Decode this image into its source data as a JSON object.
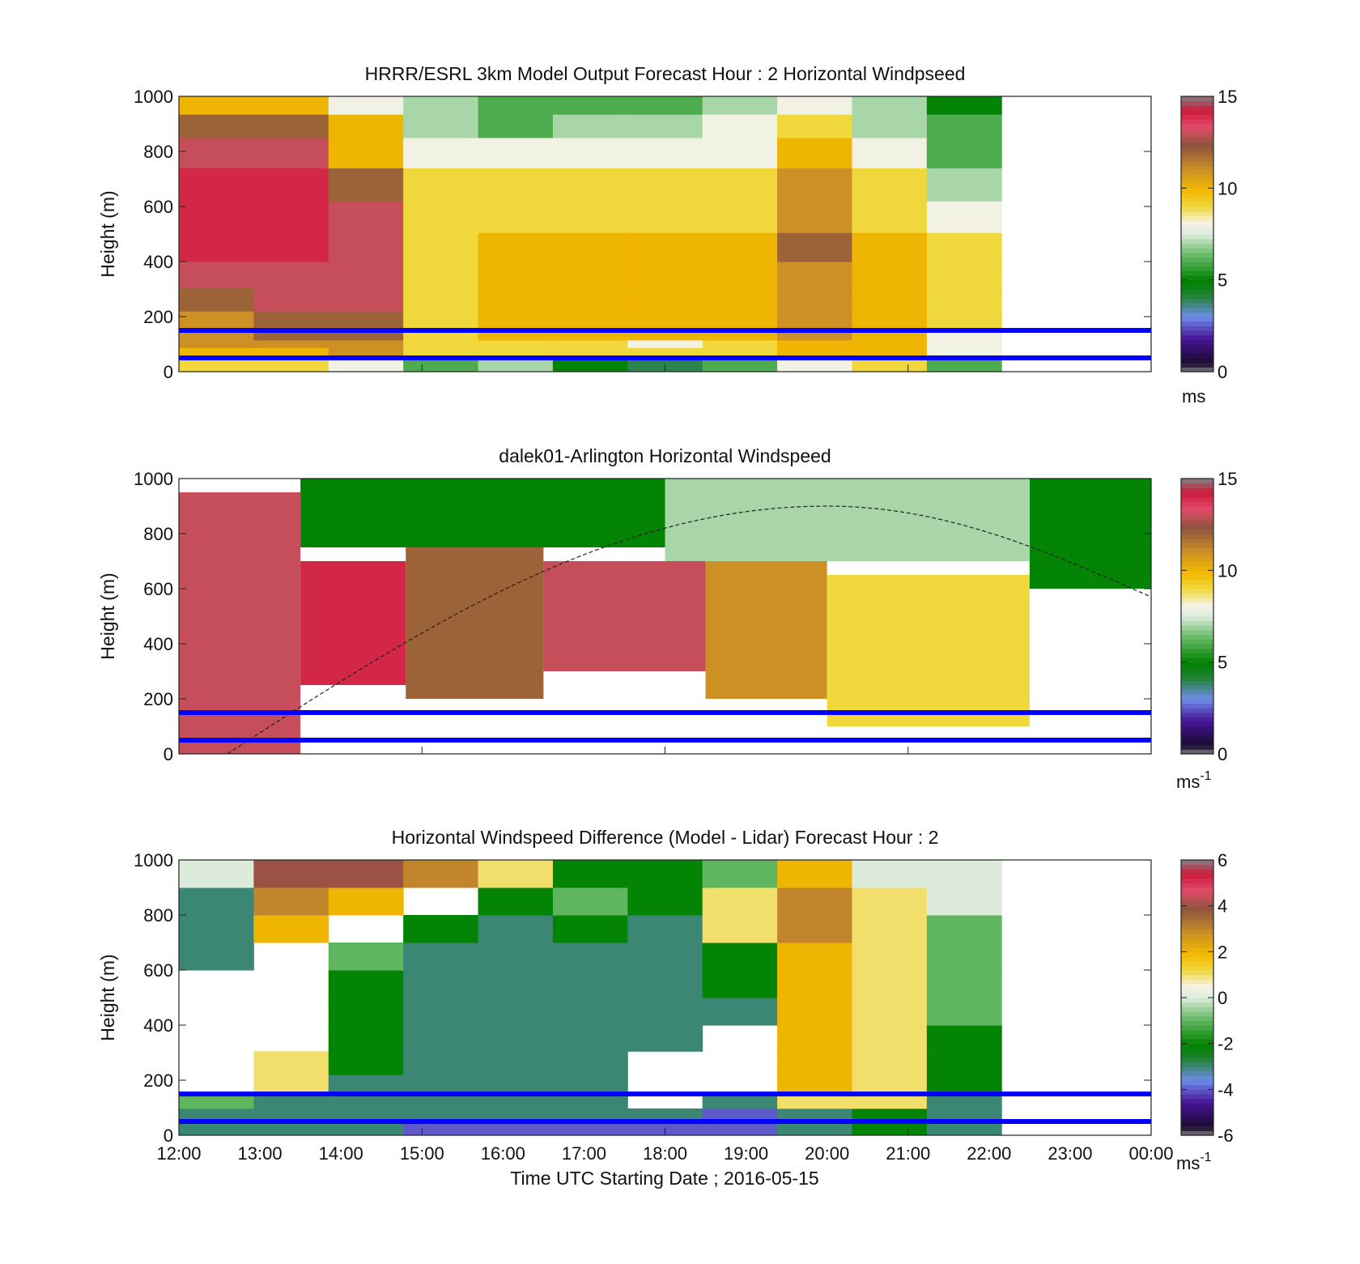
{
  "figure": {
    "xlabel": "Time UTC  Starting Date ; 2016-05-15"
  },
  "chart_data": [
    {
      "type": "heatmap",
      "title": "HRRR/ESRL 3km Model Output   Forecast Hour : 2 Horizontal Windpseed",
      "ylabel": "Height (m)",
      "ylim": [
        0,
        1000
      ],
      "yticks": [
        "0",
        "200",
        "400",
        "600",
        "800",
        "1000"
      ],
      "x": [
        "12:00",
        "13:00",
        "14:00",
        "15:00",
        "16:00",
        "17:00",
        "18:00",
        "19:00",
        "20:00",
        "21:00",
        "22:00",
        "23:00"
      ],
      "y_levels": [
        30,
        75,
        100,
        130,
        180,
        260,
        350,
        450,
        560,
        680,
        800,
        900,
        970
      ],
      "values": [
        [
          9,
          9,
          8,
          6,
          7,
          5,
          4,
          6,
          8,
          9,
          6,
          null
        ],
        [
          10,
          10,
          11,
          9,
          9,
          9,
          9,
          9,
          10,
          10,
          8,
          null
        ],
        [
          11,
          11,
          11,
          9,
          9,
          9,
          8,
          9,
          10,
          10,
          8,
          null
        ],
        [
          11,
          12,
          12,
          9,
          10,
          10,
          10,
          10,
          11,
          10,
          8,
          null
        ],
        [
          11,
          12,
          12,
          9,
          10,
          10,
          10,
          10,
          11,
          10,
          9,
          null
        ],
        [
          12,
          13,
          13,
          9,
          10,
          10,
          10,
          10,
          11,
          10,
          9,
          null
        ],
        [
          13,
          13,
          13,
          9,
          10,
          10,
          10,
          10,
          11,
          10,
          9,
          null
        ],
        [
          14,
          14,
          13,
          9,
          10,
          10,
          10,
          10,
          12,
          10,
          9,
          null
        ],
        [
          14,
          14,
          13,
          9,
          9,
          9,
          9,
          9,
          11,
          9,
          8,
          null
        ],
        [
          14,
          14,
          12,
          9,
          9,
          9,
          9,
          9,
          11,
          9,
          7,
          null
        ],
        [
          13,
          13,
          10,
          8,
          8,
          8,
          8,
          8,
          10,
          8,
          6,
          null
        ],
        [
          12,
          12,
          10,
          7,
          6,
          7,
          7,
          8,
          9,
          7,
          6,
          null
        ],
        [
          10,
          10,
          8,
          7,
          6,
          6,
          6,
          7,
          8,
          7,
          5,
          null
        ]
      ],
      "colorbar": {
        "range": [
          0,
          15
        ],
        "ticks": [
          "0",
          "5",
          "10",
          "15"
        ],
        "unit": "ms"
      },
      "reference_lines_m": [
        50,
        150
      ]
    },
    {
      "type": "heatmap",
      "title": "dalek01-Arlington  Horizontal Windspeed",
      "ylabel": "Height (m)",
      "ylim": [
        0,
        1000
      ],
      "yticks": [
        "0",
        "200",
        "400",
        "600",
        "800",
        "1000"
      ],
      "time_range_utc": [
        "12:00",
        "24:00"
      ],
      "regions": [
        {
          "t0": 12.0,
          "t1": 13.5,
          "h0": 0,
          "h1": 950,
          "value": 13
        },
        {
          "t0": 13.5,
          "t1": 14.8,
          "h0": 250,
          "h1": 700,
          "value": 14
        },
        {
          "t0": 14.8,
          "t1": 16.5,
          "h0": 200,
          "h1": 800,
          "value": 12
        },
        {
          "t0": 16.5,
          "t1": 18.5,
          "h0": 300,
          "h1": 700,
          "value": 13
        },
        {
          "t0": 18.5,
          "t1": 20.0,
          "h0": 200,
          "h1": 750,
          "value": 11
        },
        {
          "t0": 20.0,
          "t1": 22.5,
          "h0": 100,
          "h1": 650,
          "value": 9
        },
        {
          "t0": 22.5,
          "t1": 24.0,
          "h0": 600,
          "h1": 1000,
          "value": 5
        },
        {
          "t0": 13.5,
          "t1": 18.0,
          "h0": 750,
          "h1": 1000,
          "value": 5
        },
        {
          "t0": 18.0,
          "t1": 22.5,
          "h0": 700,
          "h1": 1000,
          "value": 7
        }
      ],
      "colorbar": {
        "range": [
          0,
          15
        ],
        "ticks": [
          "0",
          "5",
          "10",
          "15"
        ],
        "unit": "ms",
        "unit_sup": "-1"
      },
      "reference_lines_m": [
        50,
        150
      ],
      "dashed_curve": {
        "t_start": 12.6,
        "t_peak": 20.0,
        "t_end": 24.0,
        "h_start": 0,
        "h_peak": 900,
        "h_end": 570
      }
    },
    {
      "type": "heatmap",
      "title": "Horizontal Windspeed Difference (Model - Lidar) Forecast Hour : 2",
      "ylabel": "Height (m)",
      "ylim": [
        0,
        1000
      ],
      "yticks": [
        "0",
        "200",
        "400",
        "600",
        "800",
        "1000"
      ],
      "xticks": [
        "12:00",
        "13:00",
        "14:00",
        "15:00",
        "16:00",
        "17:00",
        "18:00",
        "19:00",
        "20:00",
        "21:00",
        "22:00",
        "23:00",
        "00:00"
      ],
      "x": [
        "12:00",
        "13:00",
        "14:00",
        "15:00",
        "16:00",
        "17:00",
        "18:00",
        "19:00",
        "20:00",
        "21:00",
        "22:00",
        "23:00"
      ],
      "y_levels": [
        30,
        75,
        120,
        180,
        260,
        350,
        450,
        550,
        650,
        750,
        850,
        950
      ],
      "values": [
        [
          -3,
          -3,
          -3,
          -4,
          -4,
          -4,
          -4,
          -4,
          -3,
          -2,
          -3,
          null
        ],
        [
          -3,
          -3,
          -3,
          -3,
          -3,
          -3,
          -3,
          -4,
          -3,
          -2,
          -3,
          null
        ],
        [
          -1,
          -3,
          -3,
          -3,
          -3,
          -3,
          null,
          -3,
          1,
          1,
          -3,
          null
        ],
        [
          null,
          1,
          -3,
          -3,
          -3,
          -3,
          null,
          null,
          2,
          1,
          -2,
          null
        ],
        [
          null,
          1,
          -2,
          -3,
          -3,
          -3,
          null,
          null,
          2,
          1,
          -2,
          null
        ],
        [
          null,
          null,
          -2,
          -3,
          -3,
          -3,
          -3,
          null,
          2,
          1,
          -2,
          null
        ],
        [
          null,
          null,
          -2,
          -3,
          -3,
          -3,
          -3,
          -3,
          2,
          1,
          -1,
          null
        ],
        [
          null,
          null,
          -2,
          -3,
          -3,
          -3,
          -3,
          -2,
          2,
          1,
          -1,
          null
        ],
        [
          -3,
          null,
          -1,
          -3,
          -3,
          -3,
          -3,
          -2,
          2,
          1,
          -1,
          null
        ],
        [
          -3,
          2,
          null,
          -2,
          -3,
          -2,
          -3,
          1,
          3,
          1,
          -1,
          null
        ],
        [
          -3,
          3,
          2,
          null,
          -2,
          -1,
          -2,
          1,
          3,
          1,
          0,
          null
        ],
        [
          0,
          4,
          4,
          3,
          1,
          -2,
          -2,
          -1,
          2,
          0,
          0,
          null
        ]
      ],
      "colorbar": {
        "range": [
          -6,
          6
        ],
        "ticks": [
          "-6",
          "-4",
          "-2",
          "0",
          "2",
          "4",
          "6"
        ],
        "unit": "ms",
        "unit_sup": "-1"
      },
      "reference_lines_m": [
        50,
        150
      ]
    }
  ]
}
